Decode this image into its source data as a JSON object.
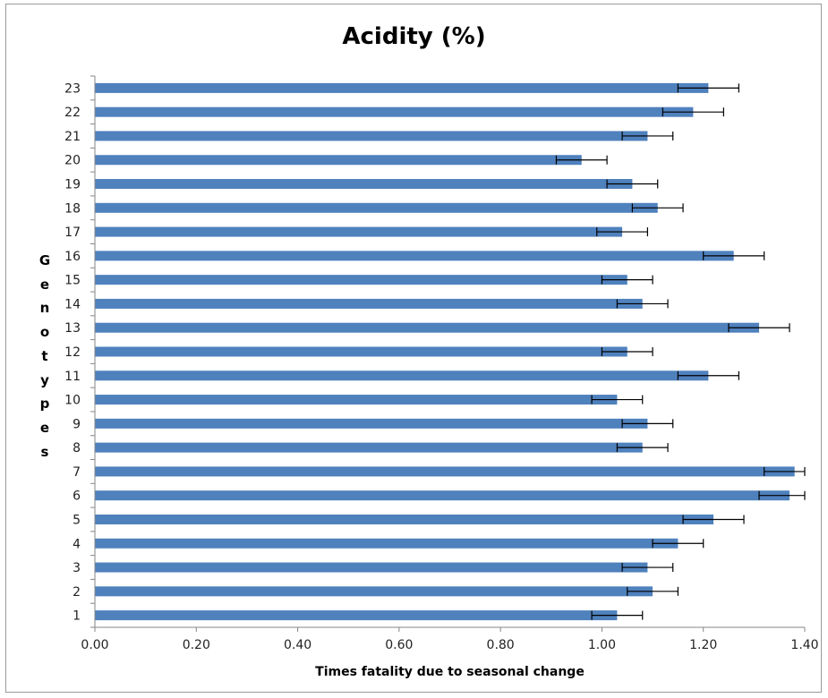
{
  "colors": {
    "bar": "#4f81bd",
    "axis": "#868686",
    "error": "#000000"
  },
  "chart_data": {
    "type": "bar",
    "orientation": "horizontal",
    "title": "Acidity (%)",
    "xlabel": "Times fatality due to seasonal change",
    "ylabel": "Genotypes",
    "xlim": [
      0,
      1.4
    ],
    "xticks": [
      "0.00",
      "0.20",
      "0.40",
      "0.60",
      "0.80",
      "1.00",
      "1.20",
      "1.40"
    ],
    "categories": [
      "1",
      "2",
      "3",
      "4",
      "5",
      "6",
      "7",
      "8",
      "9",
      "10",
      "11",
      "12",
      "13",
      "14",
      "15",
      "16",
      "17",
      "18",
      "19",
      "20",
      "21",
      "22",
      "23"
    ],
    "values": [
      1.03,
      1.1,
      1.09,
      1.15,
      1.22,
      1.37,
      1.38,
      1.08,
      1.09,
      1.03,
      1.21,
      1.05,
      1.31,
      1.08,
      1.05,
      1.26,
      1.04,
      1.11,
      1.06,
      0.96,
      1.09,
      1.18,
      1.21
    ],
    "error": [
      0.05,
      0.05,
      0.05,
      0.05,
      0.06,
      0.06,
      0.06,
      0.05,
      0.05,
      0.05,
      0.06,
      0.05,
      0.06,
      0.05,
      0.05,
      0.06,
      0.05,
      0.05,
      0.05,
      0.05,
      0.05,
      0.06,
      0.06
    ],
    "grid": false,
    "legend": "none"
  }
}
